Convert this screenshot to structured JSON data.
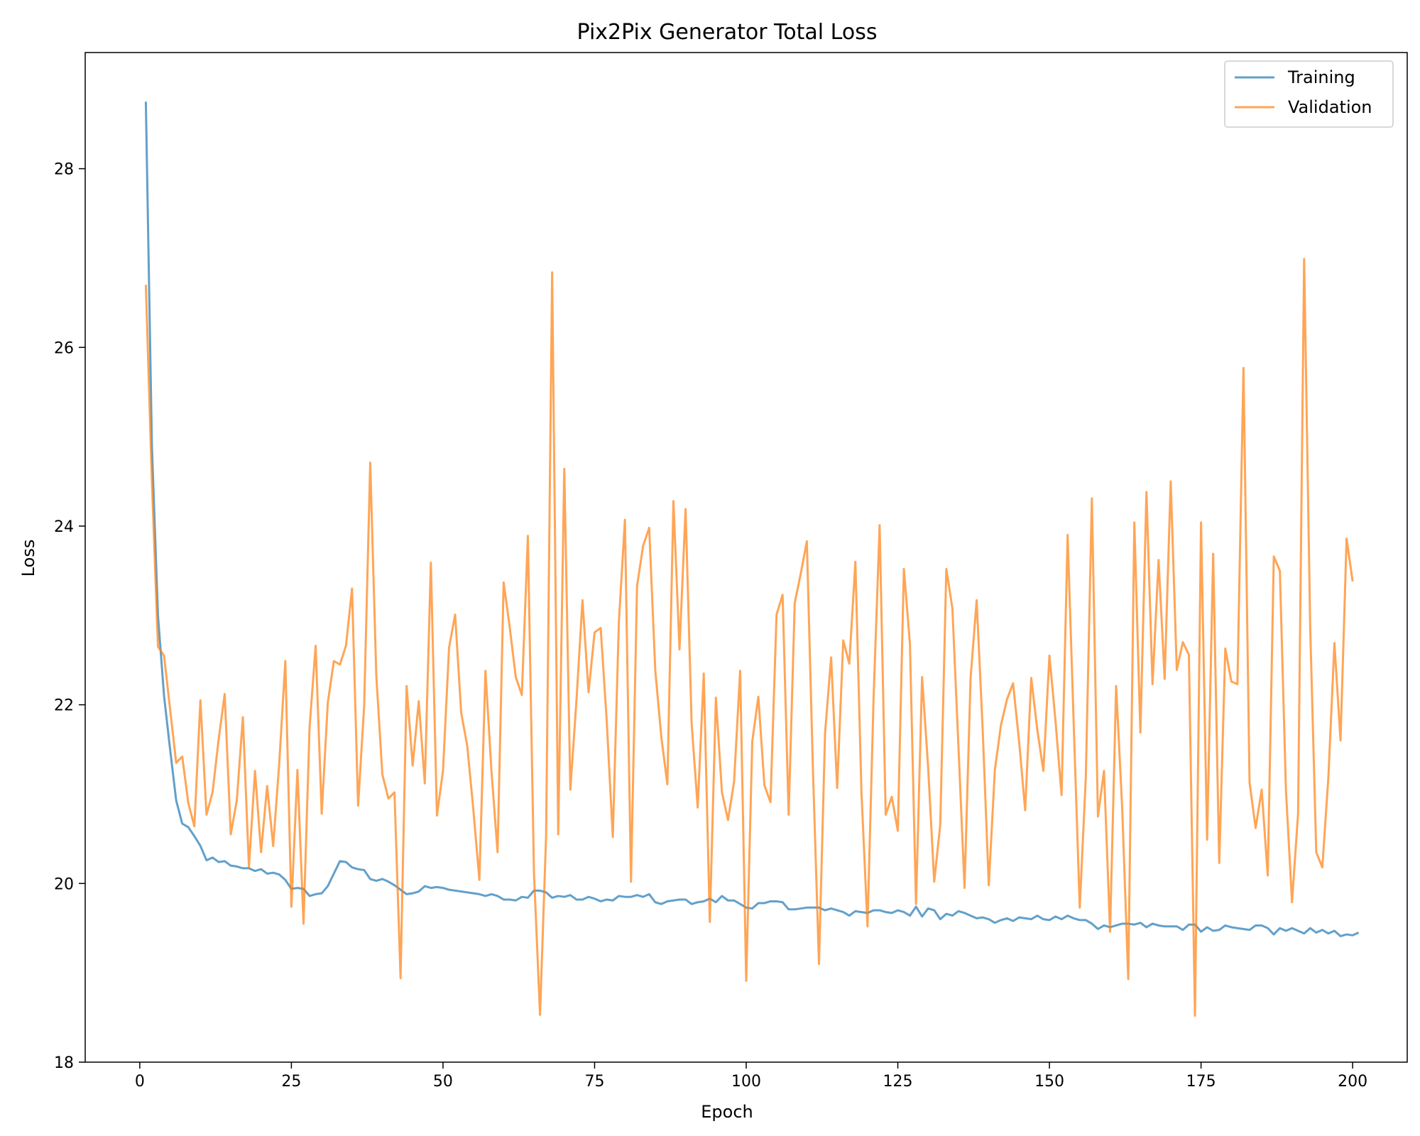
{
  "chart_data": {
    "type": "line",
    "title": "Pix2Pix Generator Total Loss",
    "xlabel": "Epoch",
    "ylabel": "Loss",
    "xlim": [
      -9,
      209
    ],
    "ylim": [
      18,
      29.3
    ],
    "xticks": [
      0,
      25,
      50,
      75,
      100,
      125,
      150,
      175,
      200
    ],
    "yticks": [
      18,
      20,
      22,
      24,
      26,
      28
    ],
    "grid": false,
    "legend_position": "top-right",
    "x_start": 1,
    "series": [
      {
        "name": "Training",
        "color": "#1f77b4",
        "values": [
          28.75,
          24.9,
          23.0,
          22.1,
          21.5,
          20.93,
          20.67,
          20.63,
          20.53,
          20.42,
          20.26,
          20.29,
          20.24,
          20.25,
          20.2,
          20.19,
          20.17,
          20.17,
          20.14,
          20.16,
          20.11,
          20.12,
          20.1,
          20.04,
          19.94,
          19.95,
          19.94,
          19.86,
          19.88,
          19.89,
          19.97,
          20.11,
          20.25,
          20.24,
          20.18,
          20.16,
          20.15,
          20.05,
          20.03,
          20.05,
          20.02,
          19.98,
          19.93,
          19.88,
          19.89,
          19.91,
          19.97,
          19.95,
          19.96,
          19.95,
          19.93,
          19.92,
          19.91,
          19.9,
          19.89,
          19.88,
          19.86,
          19.88,
          19.86,
          19.82,
          19.82,
          19.81,
          19.85,
          19.84,
          19.92,
          19.92,
          19.9,
          19.84,
          19.86,
          19.85,
          19.87,
          19.82,
          19.82,
          19.85,
          19.83,
          19.8,
          19.82,
          19.81,
          19.86,
          19.85,
          19.85,
          19.87,
          19.85,
          19.88,
          19.79,
          19.77,
          19.8,
          19.81,
          19.82,
          19.82,
          19.77,
          19.79,
          19.8,
          19.83,
          19.79,
          19.86,
          19.81,
          19.81,
          19.77,
          19.73,
          19.72,
          19.78,
          19.78,
          19.8,
          19.8,
          19.79,
          19.71,
          19.71,
          19.72,
          19.73,
          19.73,
          19.73,
          19.7,
          19.72,
          19.7,
          19.68,
          19.64,
          19.69,
          19.68,
          19.67,
          19.7,
          19.7,
          19.68,
          19.67,
          19.7,
          19.68,
          19.64,
          19.74,
          19.63,
          19.72,
          19.7,
          19.6,
          19.66,
          19.64,
          19.69,
          19.67,
          19.64,
          19.61,
          19.62,
          19.6,
          19.56,
          19.59,
          19.61,
          19.58,
          19.62,
          19.61,
          19.6,
          19.64,
          19.6,
          19.59,
          19.63,
          19.6,
          19.64,
          19.61,
          19.59,
          19.59,
          19.55,
          19.49,
          19.53,
          19.51,
          19.53,
          19.55,
          19.55,
          19.54,
          19.56,
          19.51,
          19.55,
          19.53,
          19.52,
          19.52,
          19.52,
          19.48,
          19.54,
          19.54,
          19.46,
          19.51,
          19.47,
          19.48,
          19.53,
          19.51,
          19.5,
          19.49,
          19.48,
          19.53,
          19.53,
          19.5,
          19.43,
          19.5,
          19.47,
          19.5,
          19.47,
          19.44,
          19.5,
          19.45,
          19.48,
          19.44,
          19.47,
          19.41,
          19.43,
          19.42,
          19.45
        ]
      },
      {
        "name": "Validation",
        "color": "#ff7f0e",
        "values": [
          26.7,
          24.5,
          22.65,
          22.55,
          21.95,
          21.35,
          21.42,
          20.9,
          20.64,
          22.05,
          20.77,
          21.02,
          21.61,
          22.12,
          20.55,
          20.93,
          21.86,
          20.18,
          21.26,
          20.35,
          21.09,
          20.42,
          21.35,
          22.49,
          19.74,
          21.27,
          19.55,
          21.75,
          22.66,
          20.78,
          22.02,
          22.49,
          22.45,
          22.66,
          23.3,
          20.87,
          21.99,
          24.71,
          22.33,
          21.22,
          20.95,
          21.02,
          18.94,
          22.21,
          21.32,
          22.04,
          21.12,
          23.59,
          20.76,
          21.26,
          22.64,
          23.01,
          21.91,
          21.54,
          20.83,
          20.04,
          22.38,
          21.25,
          20.35,
          23.37,
          22.87,
          22.31,
          22.11,
          23.89,
          20.12,
          18.53,
          20.53,
          26.84,
          20.55,
          24.64,
          21.05,
          22.04,
          23.17,
          22.14,
          22.81,
          22.86,
          21.82,
          20.52,
          22.92,
          24.07,
          20.02,
          23.33,
          23.78,
          23.98,
          22.39,
          21.64,
          21.11,
          24.28,
          22.62,
          24.19,
          21.79,
          20.85,
          22.35,
          19.57,
          22.08,
          21.02,
          20.71,
          21.14,
          22.38,
          18.91,
          21.59,
          22.09,
          21.1,
          20.91,
          23.01,
          23.23,
          20.77,
          23.14,
          23.47,
          23.83,
          21.28,
          19.1,
          21.68,
          22.53,
          21.07,
          22.72,
          22.46,
          23.6,
          21.03,
          19.52,
          22.07,
          24.01,
          20.77,
          20.97,
          20.59,
          23.52,
          22.68,
          19.77,
          22.31,
          21.3,
          20.02,
          20.66,
          23.52,
          23.08,
          21.53,
          19.95,
          22.3,
          23.17,
          21.71,
          19.98,
          21.27,
          21.77,
          22.06,
          22.24,
          21.59,
          20.82,
          22.3,
          21.72,
          21.26,
          22.55,
          21.82,
          20.99,
          23.9,
          21.79,
          19.73,
          21.19,
          24.31,
          20.75,
          21.26,
          19.46,
          22.21,
          20.84,
          18.93,
          24.04,
          21.69,
          24.38,
          22.23,
          23.62,
          22.29,
          24.5,
          22.39,
          22.7,
          22.56,
          18.52,
          24.04,
          20.49,
          23.69,
          20.23,
          22.63,
          22.26,
          22.23,
          25.77,
          21.13,
          20.62,
          21.05,
          20.09,
          23.66,
          23.5,
          21.05,
          19.79,
          20.78,
          26.99,
          22.87,
          20.35,
          20.18,
          21.19,
          22.69,
          21.6,
          23.86,
          23.38
        ]
      }
    ]
  }
}
